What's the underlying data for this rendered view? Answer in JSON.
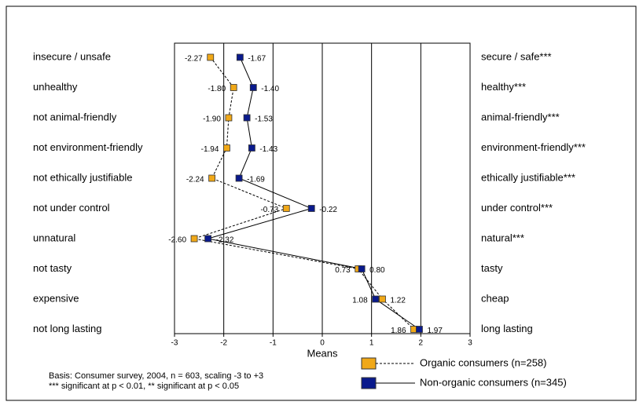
{
  "chart_data": {
    "type": "profile",
    "xlabel": "Means",
    "xlim": [
      -3,
      3
    ],
    "xticks": [
      -3,
      -2,
      -1,
      0,
      1,
      2,
      3
    ],
    "grid": true,
    "categories": [
      "insecure / unsafe",
      "unhealthy",
      "not animal-friendly",
      "not environment-friendly",
      "not ethically justifiable",
      "not under control",
      "unnatural",
      "not tasty",
      "expensive",
      "not long lasting"
    ],
    "right_labels": [
      "secure / safe***",
      "healthy***",
      "animal-friendly***",
      "environment-friendly***",
      "ethically justifiable***",
      "under control***",
      "natural***",
      "tasty",
      "cheap",
      "long lasting"
    ],
    "series": [
      {
        "name": "Organic consumers (n=258)",
        "color": "#f0a818",
        "line": "dashed",
        "values": [
          -2.27,
          -1.8,
          -1.9,
          -1.94,
          -2.24,
          -0.73,
          -2.6,
          0.73,
          1.22,
          1.86
        ],
        "value_labels": [
          "-2.27",
          "-1.80",
          "-1.90",
          "-1.94",
          "-2.24",
          "-0.73",
          "-2.60",
          "0.73",
          "1.22",
          "1.86"
        ]
      },
      {
        "name": "Non-organic consumers (n=345)",
        "color": "#0a1a8c",
        "line": "solid",
        "values": [
          -1.67,
          -1.4,
          -1.53,
          -1.43,
          -1.69,
          -0.22,
          -2.32,
          0.8,
          1.08,
          1.97
        ],
        "value_labels": [
          "-1.67",
          "-1.40",
          "-1.53",
          "-1.43",
          "-1.69",
          "-0.22",
          "-2.32",
          "0.80",
          "1.08",
          "1.97"
        ]
      }
    ],
    "notes": [
      "Basis: Consumer survey, 2004,  n = 603, scaling -3 to +3",
      "*** significant at p < 0.01, ** significant at p < 0.05"
    ]
  }
}
